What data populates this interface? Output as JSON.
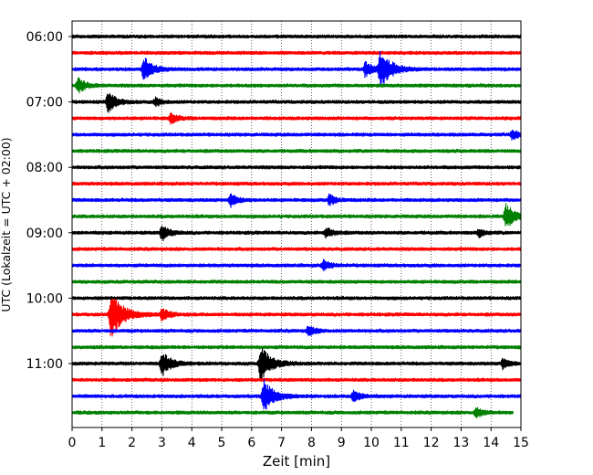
{
  "chart_data": {
    "type": "line",
    "title": "",
    "xlabel": "Zeit  [min]",
    "ylabel": "UTC (Lokalzeit = UTC + 02:00)",
    "xlim": [
      0,
      15
    ],
    "x_ticks": [
      "0",
      "1",
      "2",
      "3",
      "4",
      "5",
      "6",
      "7",
      "8",
      "9",
      "10",
      "11",
      "12",
      "13",
      "14",
      "15"
    ],
    "y_tick_labels": [
      "06:00",
      "07:00",
      "08:00",
      "09:00",
      "10:00",
      "11:00"
    ],
    "grid": "vertical dotted at each minute",
    "trace_interval_minutes": 15,
    "color_cycle": [
      "#000000",
      "#ff0000",
      "#0000ff",
      "#008000"
    ],
    "traces": [
      {
        "start": "06:00",
        "color": "#000000",
        "events": []
      },
      {
        "start": "06:15",
        "color": "#ff0000",
        "events": []
      },
      {
        "start": "06:30",
        "color": "#0000ff",
        "events": [
          {
            "t": 2.4,
            "amp": 1.0
          },
          {
            "t": 9.8,
            "amp": 0.6
          },
          {
            "t": 10.3,
            "amp": 1.5
          }
        ]
      },
      {
        "start": "06:45",
        "color": "#008000",
        "events": [
          {
            "t": 0.2,
            "amp": 0.6
          }
        ]
      },
      {
        "start": "07:00",
        "color": "#000000",
        "events": [
          {
            "t": 1.2,
            "amp": 0.8
          },
          {
            "t": 2.8,
            "amp": 0.3
          }
        ]
      },
      {
        "start": "07:15",
        "color": "#ff0000",
        "events": [
          {
            "t": 3.3,
            "amp": 0.4
          }
        ]
      },
      {
        "start": "07:30",
        "color": "#0000ff",
        "events": [
          {
            "t": 14.7,
            "amp": 0.4
          }
        ]
      },
      {
        "start": "07:45",
        "color": "#008000",
        "events": []
      },
      {
        "start": "08:00",
        "color": "#000000",
        "events": []
      },
      {
        "start": "08:15",
        "color": "#ff0000",
        "events": []
      },
      {
        "start": "08:30",
        "color": "#0000ff",
        "events": [
          {
            "t": 5.3,
            "amp": 0.5
          },
          {
            "t": 8.6,
            "amp": 0.4
          }
        ]
      },
      {
        "start": "08:45",
        "color": "#008000",
        "events": [
          {
            "t": 14.5,
            "amp": 1.0
          }
        ]
      },
      {
        "start": "09:00",
        "color": "#000000",
        "events": [
          {
            "t": 3.0,
            "amp": 0.6
          },
          {
            "t": 8.5,
            "amp": 0.4
          },
          {
            "t": 13.6,
            "amp": 0.3
          }
        ]
      },
      {
        "start": "09:15",
        "color": "#ff0000",
        "events": []
      },
      {
        "start": "09:30",
        "color": "#0000ff",
        "events": [
          {
            "t": 8.4,
            "amp": 0.4
          }
        ]
      },
      {
        "start": "09:45",
        "color": "#008000",
        "events": []
      },
      {
        "start": "10:00",
        "color": "#000000",
        "events": []
      },
      {
        "start": "10:15",
        "color": "#ff0000",
        "events": [
          {
            "t": 1.3,
            "amp": 1.8
          },
          {
            "t": 3.0,
            "amp": 0.5
          }
        ]
      },
      {
        "start": "10:30",
        "color": "#0000ff",
        "events": [
          {
            "t": 7.9,
            "amp": 0.4
          }
        ]
      },
      {
        "start": "10:45",
        "color": "#008000",
        "events": []
      },
      {
        "start": "11:00",
        "color": "#000000",
        "events": [
          {
            "t": 3.0,
            "amp": 1.0
          },
          {
            "t": 6.3,
            "amp": 1.4
          },
          {
            "t": 14.4,
            "amp": 0.4
          }
        ]
      },
      {
        "start": "11:15",
        "color": "#ff0000",
        "events": []
      },
      {
        "start": "11:30",
        "color": "#0000ff",
        "events": [
          {
            "t": 6.4,
            "amp": 1.3
          },
          {
            "t": 9.4,
            "amp": 0.5
          }
        ]
      },
      {
        "start": "11:45",
        "color": "#008000",
        "events": [
          {
            "t": 13.5,
            "amp": 0.4
          }
        ],
        "end": 14.75
      }
    ]
  }
}
